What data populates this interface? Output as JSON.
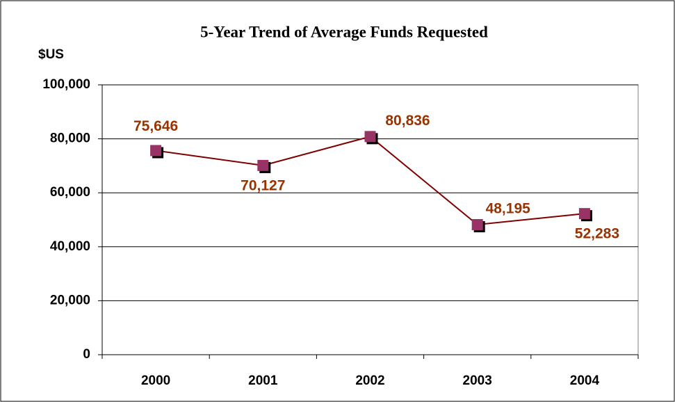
{
  "chart_data": {
    "type": "line",
    "title": "5-Year Trend of Average Funds Requested",
    "y_label": "$US",
    "categories": [
      "2000",
      "2001",
      "2002",
      "2003",
      "2004"
    ],
    "values": [
      75646,
      70127,
      80836,
      48195,
      52283
    ],
    "value_labels": [
      "75,646",
      "70,127",
      "80,836",
      "48,195",
      "52,283"
    ],
    "line_color": "#800000",
    "marker_color": "#993366",
    "ylim": [
      0,
      100000
    ],
    "yticks": [
      0,
      {
        "value": 20000,
        "label": "20,000"
      },
      {
        "value": 40000,
        "label": "40,000"
      },
      {
        "value": 60000,
        "label": "60,000"
      },
      {
        "value": 80000,
        "label": "80,000"
      },
      {
        "value": 100000,
        "label": "100,000"
      }
    ],
    "grid": true
  }
}
